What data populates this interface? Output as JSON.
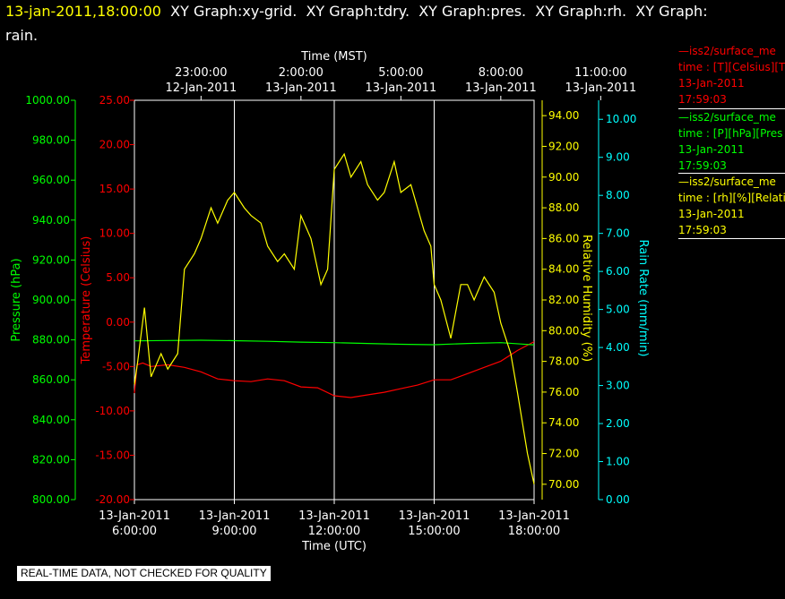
{
  "header": {
    "datetime": "13-jan-2011,18:00:00",
    "line1": "  XY Graph:xy-grid.  XY Graph:tdry.  XY Graph:pres.  XY Graph:rh.  XY Graph:",
    "line2": "rain."
  },
  "legend": [
    {
      "line": "—iss2/surface_me",
      "units": "time : [T][Celsius][T",
      "date": "13-Jan-2011",
      "time": "17:59:03",
      "color": "#ff0000"
    },
    {
      "line": "—iss2/surface_me",
      "units": "time : [P][hPa][Pres",
      "date": "13-Jan-2011",
      "time": "17:59:03",
      "color": "#00ff00"
    },
    {
      "line": "—iss2/surface_me",
      "units": "time : [rh][%][Relati",
      "date": "13-Jan-2011",
      "time": "17:59:03",
      "color": "#ffff00"
    }
  ],
  "banner": "REAL-TIME DATA, NOT CHECKED FOR QUALITY",
  "colors": {
    "temperature": "#ff0000",
    "pressure": "#00ff00",
    "humidity": "#ffff00",
    "rain": "#00ffff",
    "grid": "#ffffff"
  },
  "chart_data": {
    "type": "line",
    "title": "",
    "x_unit": "UTC",
    "x_range": [
      "2011-01-13 06:00",
      "2011-01-13 18:00"
    ],
    "top_axis": {
      "label": "Time (MST)",
      "ticks": [
        {
          "time": "23:00:00",
          "date": "12-Jan-2011"
        },
        {
          "time": "2:00:00",
          "date": "13-Jan-2011"
        },
        {
          "time": "5:00:00",
          "date": "13-Jan-2011"
        },
        {
          "time": "8:00:00",
          "date": "13-Jan-2011"
        },
        {
          "time": "11:00:00",
          "date": "13-Jan-2011"
        }
      ]
    },
    "bottom_axis": {
      "label": "Time (UTC)",
      "ticks": [
        {
          "date": "13-Jan-2011",
          "time": "6:00:00"
        },
        {
          "date": "13-Jan-2011",
          "time": "9:00:00"
        },
        {
          "date": "13-Jan-2011",
          "time": "12:00:00"
        },
        {
          "date": "13-Jan-2011",
          "time": "15:00:00"
        },
        {
          "date": "13-Jan-2011",
          "time": "18:00:00"
        }
      ]
    },
    "vertical_grid": true,
    "y_axes": {
      "pressure": {
        "label": "Pressure (hPa)",
        "range": [
          800,
          1000
        ],
        "ticks": [
          "800.00",
          "820.00",
          "840.00",
          "860.00",
          "880.00",
          "900.00",
          "920.00",
          "940.00",
          "960.00",
          "980.00",
          "1000.00"
        ]
      },
      "temperature": {
        "label": "Temperature (Celsius)",
        "range": [
          -20,
          25
        ],
        "ticks": [
          "-20.00",
          "-15.00",
          "-10.00",
          "-5.00",
          "0.00",
          "5.00",
          "10.00",
          "15.00",
          "20.00",
          "25.00"
        ]
      },
      "humidity": {
        "label": "Relative Humidity (%)",
        "range": [
          69,
          95
        ],
        "ticks": [
          "70.00",
          "72.00",
          "74.00",
          "76.00",
          "78.00",
          "80.00",
          "82.00",
          "84.00",
          "86.00",
          "88.00",
          "90.00",
          "92.00",
          "94.00"
        ]
      },
      "rain": {
        "label": "Rain Rate (mm/min)",
        "range": [
          0,
          10.5
        ],
        "ticks": [
          "0.00",
          "1.00",
          "2.00",
          "3.00",
          "4.00",
          "5.00",
          "6.00",
          "7.00",
          "8.00",
          "9.00",
          "10.00"
        ]
      }
    },
    "series": [
      {
        "name": "iss2/surface_me [T][Celsius]",
        "axis": "temperature",
        "x_hours": [
          0,
          0.08,
          0.25,
          0.5,
          1,
          1.5,
          2,
          2.5,
          3,
          3.5,
          4,
          4.5,
          5,
          5.5,
          6,
          6.5,
          7,
          7.5,
          8,
          8.5,
          9,
          9.5,
          10,
          10.5,
          11,
          11.5,
          12
        ],
        "values": [
          -8.0,
          -4.8,
          -4.6,
          -5.0,
          -4.8,
          -5.1,
          -5.6,
          -6.4,
          -6.6,
          -6.7,
          -6.4,
          -6.6,
          -7.3,
          -7.4,
          -8.3,
          -8.5,
          -8.2,
          -7.9,
          -7.5,
          -7.1,
          -6.5,
          -6.5,
          -5.8,
          -5.1,
          -4.4,
          -3.2,
          -2.2
        ]
      },
      {
        "name": "iss2/surface_me [P][hPa]",
        "axis": "pressure",
        "x_hours": [
          0,
          1,
          2,
          3,
          4,
          5,
          6,
          7,
          8,
          9,
          10,
          11,
          12
        ],
        "values": [
          879.5,
          879.7,
          879.8,
          879.6,
          879.3,
          878.9,
          878.6,
          878.2,
          877.8,
          877.6,
          878.2,
          878.6,
          877.5
        ]
      },
      {
        "name": "iss2/surface_me [rh][%]",
        "axis": "humidity",
        "x_hours": [
          0,
          0.1,
          0.3,
          0.5,
          0.8,
          1,
          1.3,
          1.5,
          1.8,
          2,
          2.3,
          2.5,
          2.8,
          3,
          3.3,
          3.5,
          3.8,
          4,
          4.3,
          4.5,
          4.8,
          5,
          5.3,
          5.6,
          5.8,
          6,
          6.3,
          6.5,
          6.8,
          7,
          7.3,
          7.5,
          7.8,
          8,
          8.3,
          8.5,
          8.7,
          8.9,
          9,
          9.2,
          9.5,
          9.8,
          10,
          10.2,
          10.5,
          10.8,
          11,
          11.3,
          11.5,
          11.8,
          12
        ],
        "values": [
          76.5,
          78,
          81.5,
          77,
          78.5,
          77.5,
          78.5,
          84,
          85,
          86,
          88,
          87,
          88.5,
          89,
          88,
          87.5,
          87,
          85.5,
          84.5,
          85,
          84,
          87.5,
          86,
          83,
          84,
          90.5,
          91.5,
          90,
          91,
          89.5,
          88.5,
          89,
          91,
          89,
          89.5,
          88,
          86.5,
          85.5,
          83,
          82,
          79.5,
          83,
          83,
          82,
          83.5,
          82.5,
          80.5,
          78.5,
          76,
          72,
          70
        ]
      },
      {
        "name": "Rain Rate",
        "axis": "rain",
        "x_hours": [],
        "values": []
      }
    ]
  }
}
